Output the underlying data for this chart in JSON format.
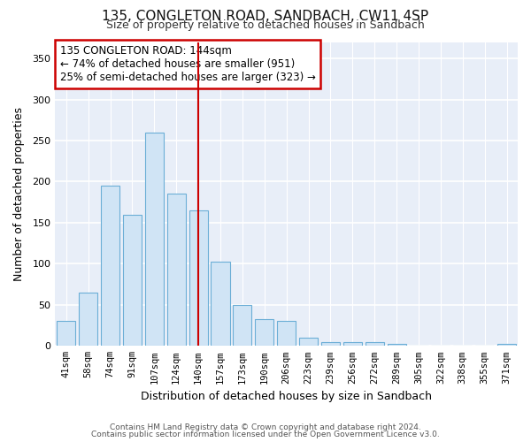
{
  "title1": "135, CONGLETON ROAD, SANDBACH, CW11 4SP",
  "title2": "Size of property relative to detached houses in Sandbach",
  "xlabel": "Distribution of detached houses by size in Sandbach",
  "ylabel": "Number of detached properties",
  "categories": [
    "41sqm",
    "58sqm",
    "74sqm",
    "91sqm",
    "107sqm",
    "124sqm",
    "140sqm",
    "157sqm",
    "173sqm",
    "190sqm",
    "206sqm",
    "223sqm",
    "239sqm",
    "256sqm",
    "272sqm",
    "289sqm",
    "305sqm",
    "322sqm",
    "338sqm",
    "355sqm",
    "371sqm"
  ],
  "values": [
    30,
    65,
    195,
    160,
    260,
    185,
    165,
    103,
    50,
    33,
    30,
    10,
    5,
    5,
    5,
    3,
    0,
    0,
    0,
    0,
    3
  ],
  "bar_color": "#d0e4f5",
  "bar_edge_color": "#6baed6",
  "highlight_index": 6,
  "highlight_line_color": "#cc0000",
  "annotation_text": "135 CONGLETON ROAD: 144sqm\n← 74% of detached houses are smaller (951)\n25% of semi-detached houses are larger (323) →",
  "annotation_box_color": "#ffffff",
  "annotation_box_edge": "#cc0000",
  "ylim": [
    0,
    370
  ],
  "yticks": [
    0,
    50,
    100,
    150,
    200,
    250,
    300,
    350
  ],
  "footer1": "Contains HM Land Registry data © Crown copyright and database right 2024.",
  "footer2": "Contains public sector information licensed under the Open Government Licence v3.0.",
  "bg_color": "#e8eef8",
  "grid_color": "#ffffff",
  "title1_fontsize": 11,
  "title2_fontsize": 9
}
